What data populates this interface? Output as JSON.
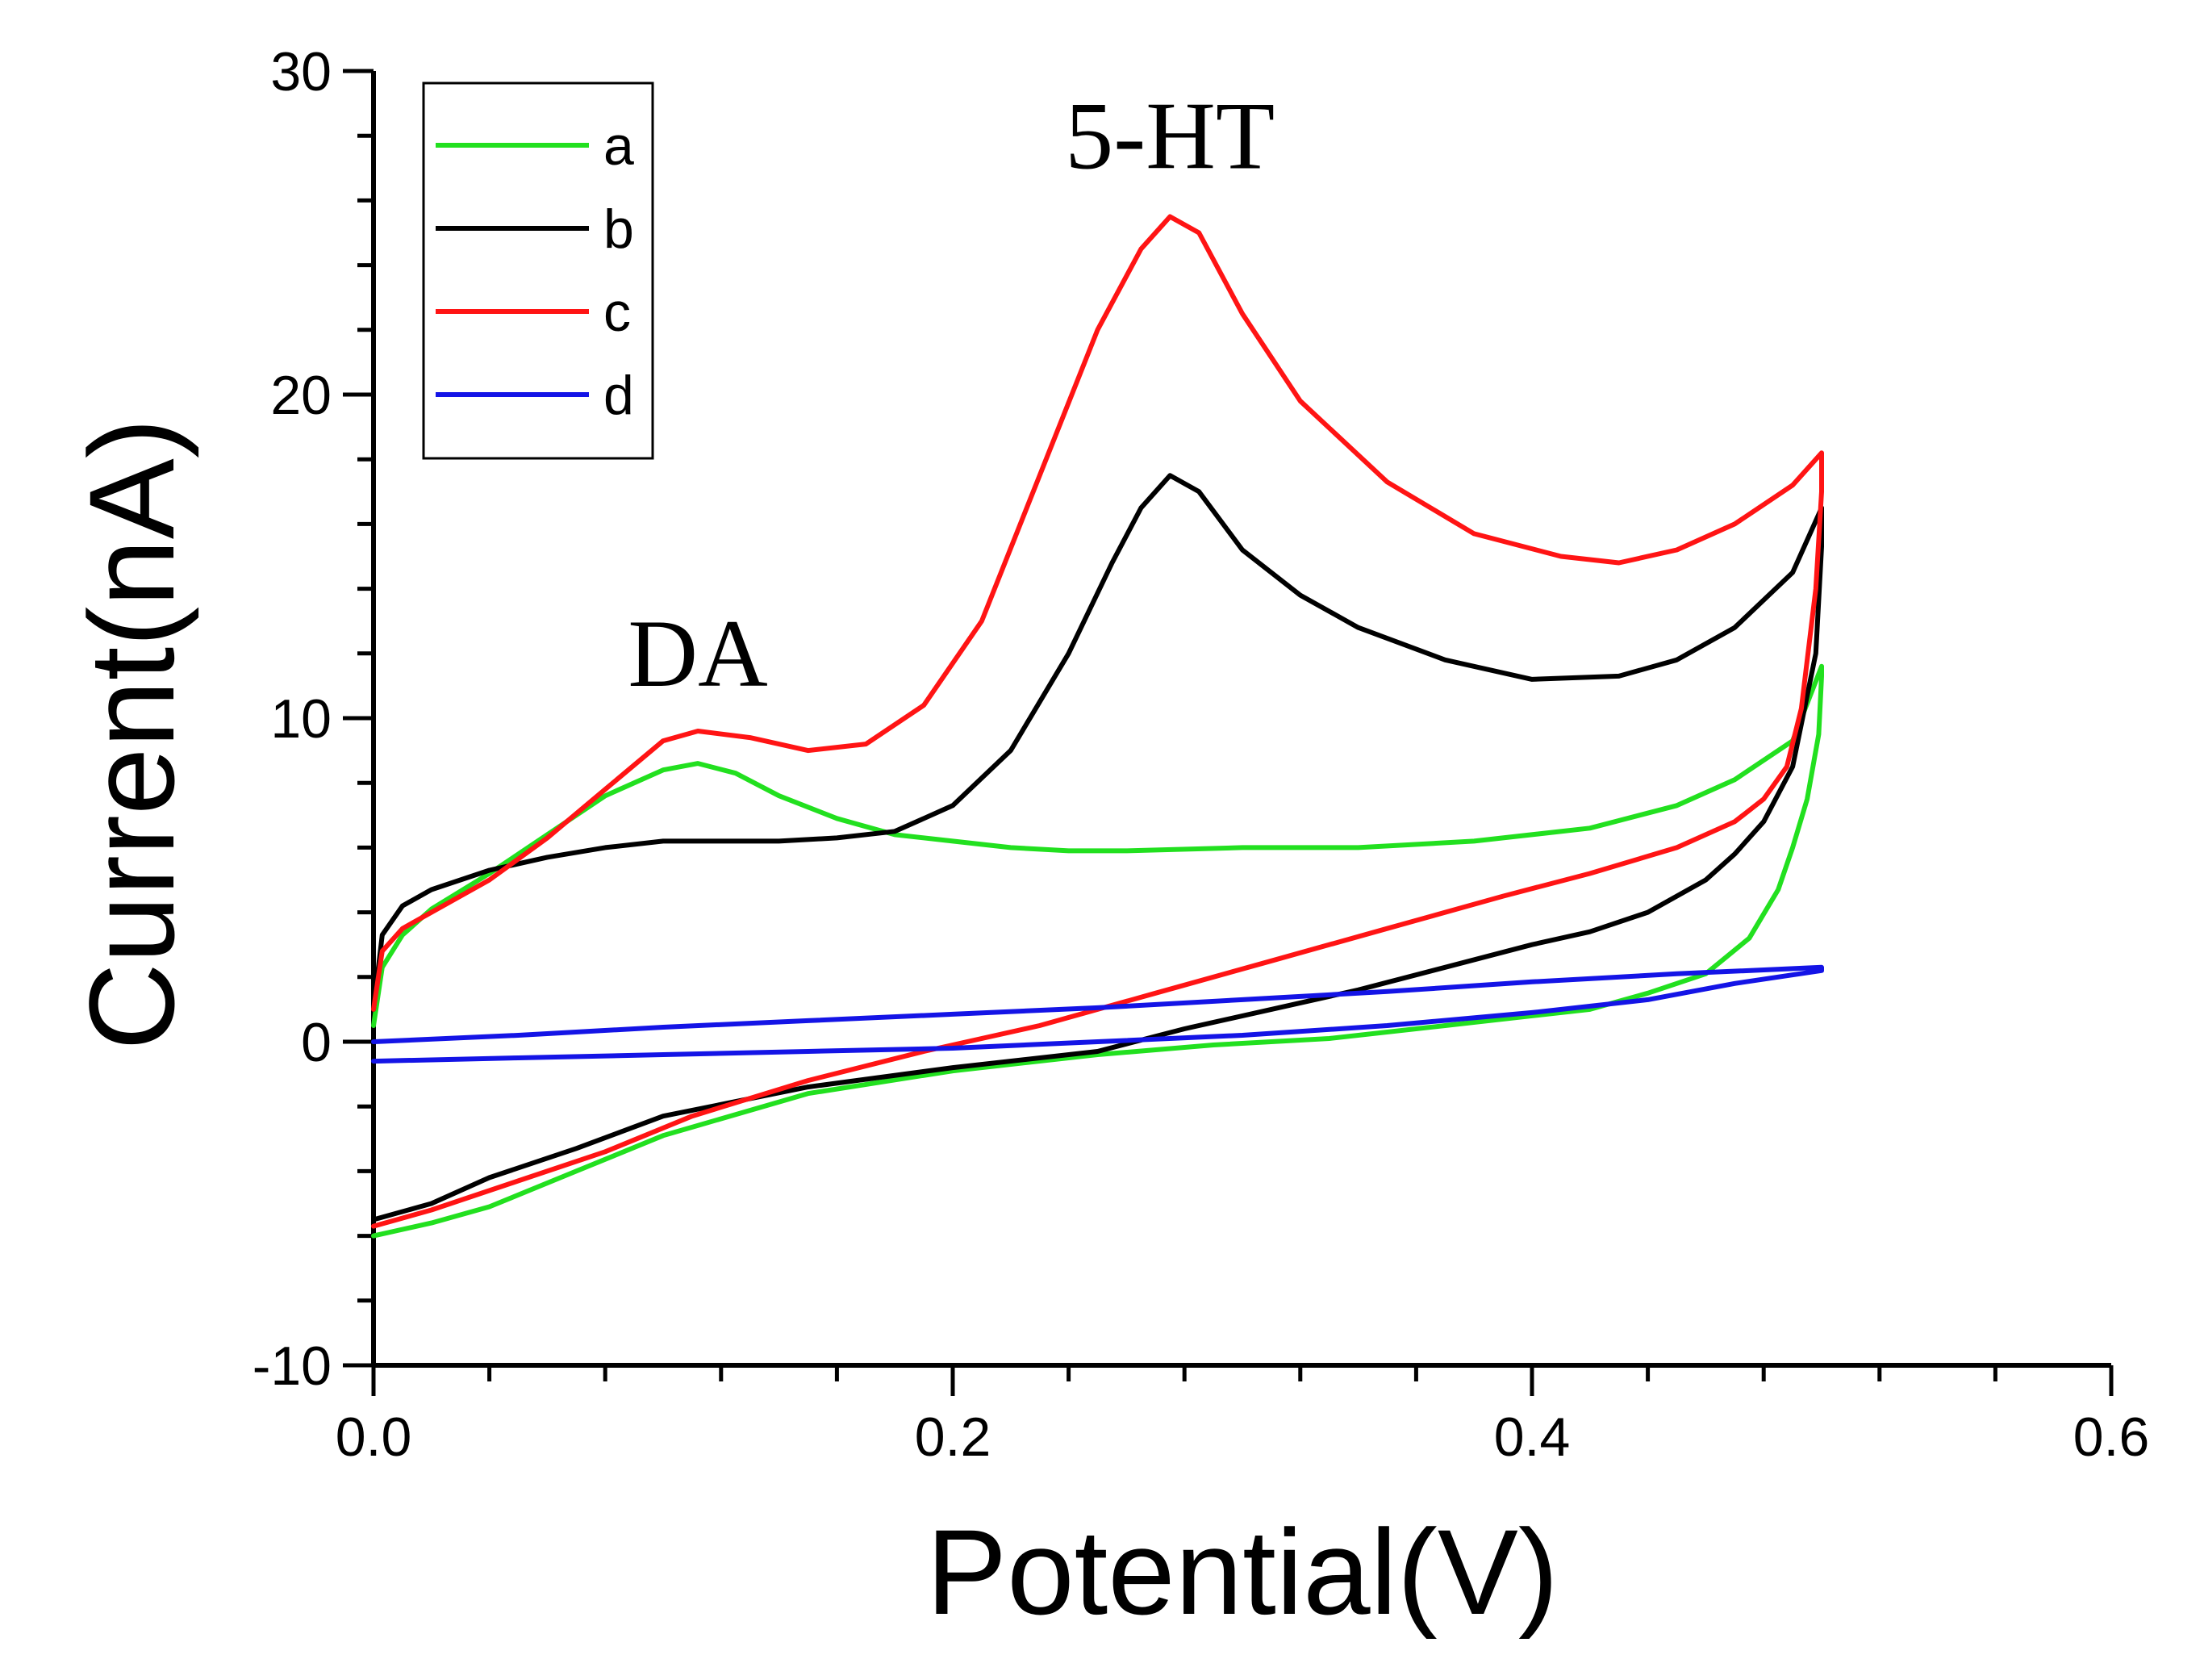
{
  "chart_data": {
    "type": "line",
    "title": "",
    "xlabel": "Potential(V)",
    "ylabel": "Current(nA)",
    "xlim": [
      0.0,
      0.6
    ],
    "ylim": [
      -10,
      30
    ],
    "x_ticks": [
      "0.0",
      "0.2",
      "0.4",
      "0.6"
    ],
    "y_ticks": [
      "-10",
      "0",
      "10",
      "20",
      "30"
    ],
    "legend_position": "top-left",
    "annotations": [
      {
        "text": "5-HT",
        "x": 0.275,
        "y": 27.0
      },
      {
        "text": "DA",
        "x": 0.112,
        "y": 11.0
      }
    ],
    "series": [
      {
        "name": "a",
        "color": "#22e01f",
        "x": [
          0.0,
          0.003,
          0.01,
          0.02,
          0.04,
          0.06,
          0.08,
          0.1,
          0.112,
          0.125,
          0.14,
          0.16,
          0.18,
          0.2,
          0.22,
          0.24,
          0.26,
          0.3,
          0.34,
          0.38,
          0.42,
          0.45,
          0.47,
          0.49,
          0.5,
          0.5,
          0.499,
          0.495,
          0.49,
          0.485,
          0.475,
          0.46,
          0.44,
          0.42,
          0.4,
          0.37,
          0.33,
          0.29,
          0.25,
          0.2,
          0.15,
          0.1,
          0.07,
          0.04,
          0.02,
          0.0
        ],
        "y": [
          0.5,
          2.3,
          3.3,
          4.1,
          5.2,
          6.4,
          7.6,
          8.4,
          8.6,
          8.3,
          7.6,
          6.9,
          6.4,
          6.2,
          6.0,
          5.9,
          5.9,
          6.0,
          6.0,
          6.2,
          6.6,
          7.3,
          8.1,
          9.3,
          11.6,
          11.3,
          9.5,
          7.5,
          6.0,
          4.7,
          3.2,
          2.1,
          1.5,
          1.0,
          0.8,
          0.5,
          0.1,
          -0.1,
          -0.4,
          -0.9,
          -1.6,
          -2.9,
          -4.0,
          -5.1,
          -5.6,
          -6.0
        ]
      },
      {
        "name": "b",
        "color": "#000000",
        "x": [
          0.0,
          0.003,
          0.01,
          0.02,
          0.04,
          0.06,
          0.08,
          0.1,
          0.12,
          0.14,
          0.16,
          0.18,
          0.2,
          0.22,
          0.24,
          0.255,
          0.265,
          0.275,
          0.285,
          0.3,
          0.32,
          0.34,
          0.37,
          0.4,
          0.43,
          0.45,
          0.47,
          0.49,
          0.5,
          0.5,
          0.498,
          0.49,
          0.48,
          0.47,
          0.46,
          0.44,
          0.42,
          0.4,
          0.37,
          0.34,
          0.31,
          0.28,
          0.25,
          0.2,
          0.15,
          0.1,
          0.07,
          0.04,
          0.02,
          0.0
        ],
        "y": [
          1.0,
          3.3,
          4.2,
          4.7,
          5.3,
          5.7,
          6.0,
          6.2,
          6.2,
          6.2,
          6.3,
          6.5,
          7.3,
          9.0,
          12.0,
          14.8,
          16.5,
          17.5,
          17.0,
          15.2,
          13.8,
          12.8,
          11.8,
          11.2,
          11.3,
          11.8,
          12.8,
          14.5,
          16.5,
          15.3,
          12.0,
          8.5,
          6.8,
          5.8,
          5.0,
          4.0,
          3.4,
          3.0,
          2.3,
          1.6,
          1.0,
          0.4,
          -0.3,
          -0.8,
          -1.4,
          -2.3,
          -3.3,
          -4.2,
          -5.0,
          -5.5
        ]
      },
      {
        "name": "c",
        "color": "#ff1414",
        "x": [
          0.0,
          0.003,
          0.01,
          0.02,
          0.04,
          0.06,
          0.08,
          0.1,
          0.112,
          0.13,
          0.15,
          0.17,
          0.19,
          0.21,
          0.23,
          0.25,
          0.265,
          0.275,
          0.285,
          0.3,
          0.32,
          0.35,
          0.38,
          0.41,
          0.43,
          0.45,
          0.47,
          0.49,
          0.5,
          0.5,
          0.498,
          0.493,
          0.488,
          0.48,
          0.47,
          0.45,
          0.42,
          0.39,
          0.35,
          0.31,
          0.27,
          0.23,
          0.19,
          0.15,
          0.11,
          0.08,
          0.05,
          0.02,
          0.0
        ],
        "y": [
          1.0,
          2.8,
          3.5,
          4.0,
          5.0,
          6.3,
          7.8,
          9.3,
          9.6,
          9.4,
          9.0,
          9.2,
          10.4,
          13.0,
          17.5,
          22.0,
          24.5,
          25.5,
          25.0,
          22.5,
          19.8,
          17.3,
          15.7,
          15.0,
          14.8,
          15.2,
          16.0,
          17.2,
          18.2,
          17.0,
          14.0,
          10.3,
          8.5,
          7.5,
          6.8,
          6.0,
          5.2,
          4.5,
          3.5,
          2.5,
          1.5,
          0.5,
          -0.3,
          -1.2,
          -2.3,
          -3.4,
          -4.3,
          -5.2,
          -5.7
        ]
      },
      {
        "name": "d",
        "color": "#1414e6",
        "x": [
          0.0,
          0.05,
          0.1,
          0.15,
          0.2,
          0.25,
          0.3,
          0.35,
          0.4,
          0.45,
          0.5,
          0.5,
          0.47,
          0.44,
          0.4,
          0.35,
          0.3,
          0.25,
          0.2,
          0.15,
          0.1,
          0.05,
          0.0
        ],
        "y": [
          0.0,
          0.2,
          0.45,
          0.65,
          0.85,
          1.05,
          1.3,
          1.55,
          1.85,
          2.1,
          2.3,
          2.2,
          1.8,
          1.3,
          0.9,
          0.5,
          0.2,
          0.0,
          -0.2,
          -0.3,
          -0.4,
          -0.5,
          -0.6
        ]
      }
    ]
  }
}
